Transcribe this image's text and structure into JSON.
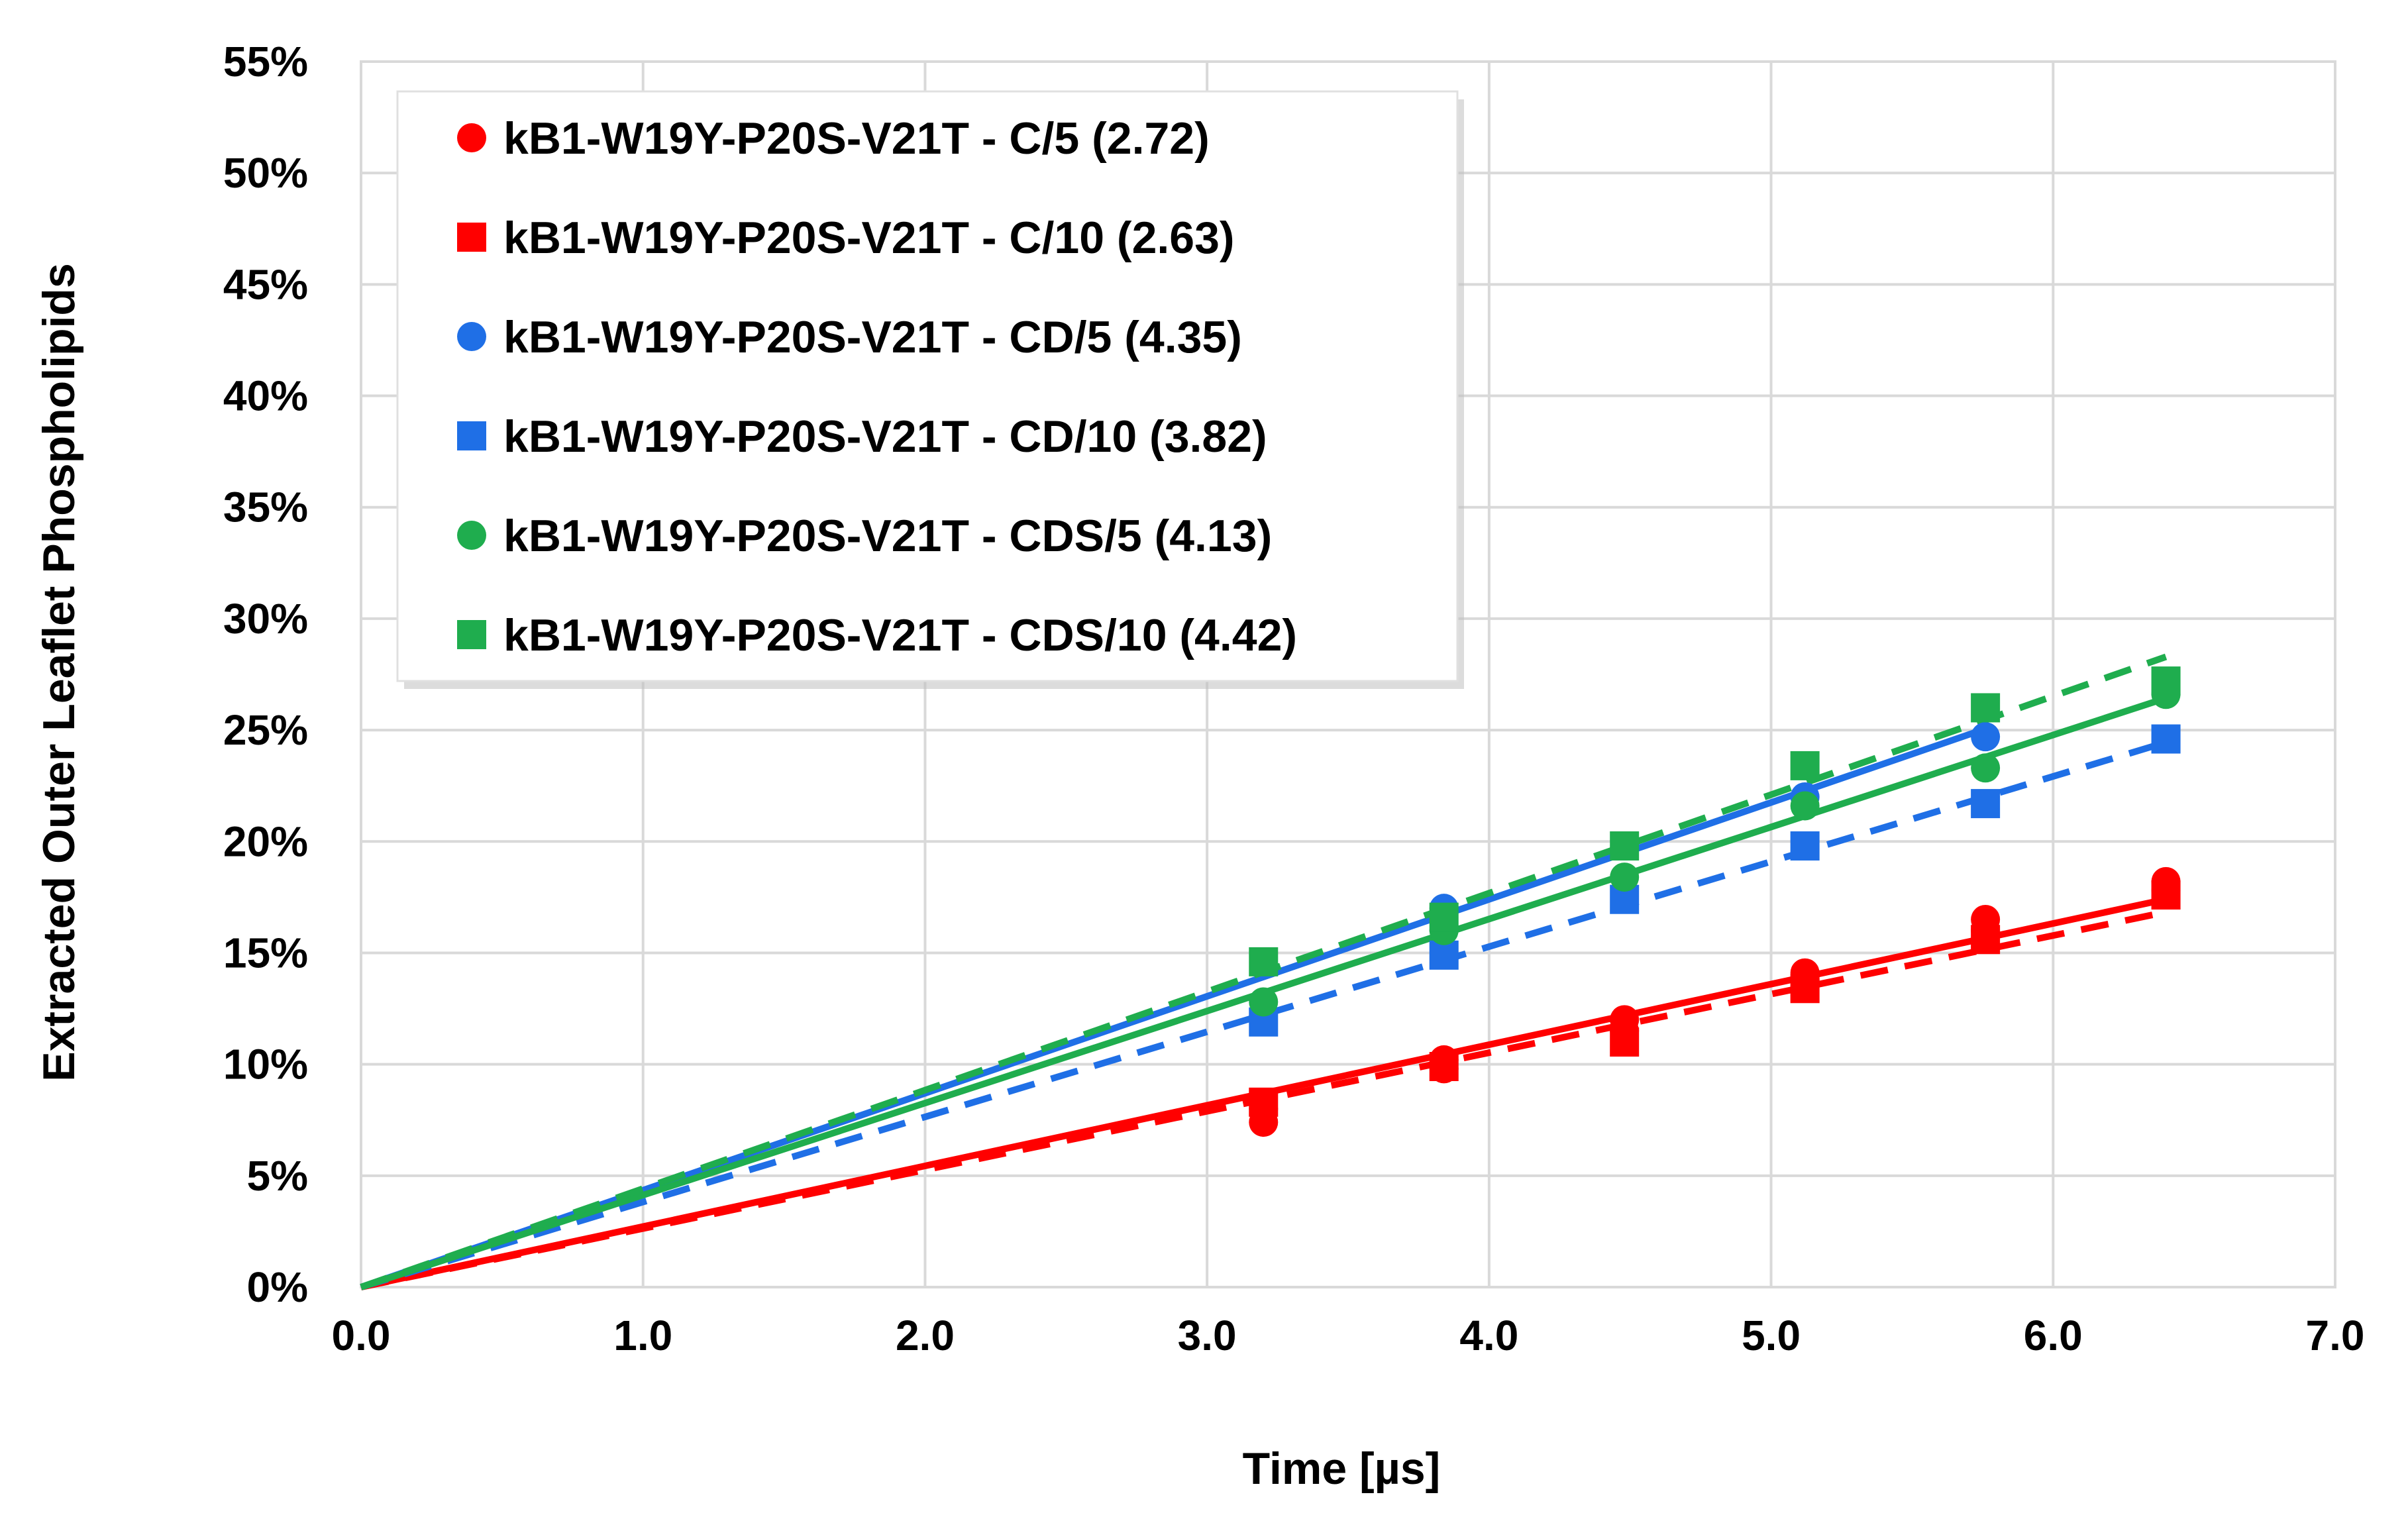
{
  "chart_data": {
    "type": "scatter",
    "title": "",
    "xlabel": "Time [µs]",
    "ylabel": "Extracted Outer Leaflet Phospholipids",
    "xlim": [
      0,
      7
    ],
    "ylim": [
      0,
      55
    ],
    "x_ticks": [
      "0.0",
      "1.0",
      "2.0",
      "3.0",
      "4.0",
      "5.0",
      "6.0",
      "7.0"
    ],
    "y_ticks": [
      "0%",
      "5%",
      "10%",
      "15%",
      "20%",
      "25%",
      "30%",
      "35%",
      "40%",
      "45%",
      "50%",
      "55%"
    ],
    "x_tick_values": [
      0,
      1,
      2,
      3,
      4,
      5,
      6,
      7
    ],
    "y_tick_values": [
      0,
      5,
      10,
      15,
      20,
      25,
      30,
      35,
      40,
      45,
      50,
      55
    ],
    "grid": true,
    "legend_position": "top-left",
    "series": [
      {
        "name": "kB1-W19Y-P20S-V21T - C/5 (2.72)",
        "color": "#ff0000",
        "marker": "circle",
        "line_style": "solid",
        "slope": 2.72,
        "points": [
          {
            "x": 3.2,
            "y": 7.4
          },
          {
            "x": 3.2,
            "y": 8.0
          },
          {
            "x": 3.84,
            "y": 9.8
          },
          {
            "x": 3.84,
            "y": 10.2
          },
          {
            "x": 4.48,
            "y": 11.5
          },
          {
            "x": 4.48,
            "y": 12.0
          },
          {
            "x": 5.12,
            "y": 13.8
          },
          {
            "x": 5.12,
            "y": 14.1
          },
          {
            "x": 5.76,
            "y": 16.0
          },
          {
            "x": 5.76,
            "y": 16.5
          },
          {
            "x": 6.4,
            "y": 17.8
          },
          {
            "x": 6.4,
            "y": 18.2
          }
        ]
      },
      {
        "name": "kB1-W19Y-P20S-V21T - C/10 (2.63)",
        "color": "#ff0000",
        "marker": "square",
        "line_style": "dashed",
        "slope": 2.63,
        "points": [
          {
            "x": 3.2,
            "y": 8.3
          },
          {
            "x": 3.84,
            "y": 9.9
          },
          {
            "x": 4.48,
            "y": 11.0
          },
          {
            "x": 5.12,
            "y": 13.4
          },
          {
            "x": 5.76,
            "y": 15.6
          },
          {
            "x": 6.4,
            "y": 17.6
          }
        ]
      },
      {
        "name": "kB1-W19Y-P20S-V21T - CD/5 (4.35)",
        "color": "#1f6fe6",
        "marker": "circle",
        "line_style": "solid",
        "slope": 4.35,
        "points": [
          {
            "x": 3.84,
            "y": 17.0
          },
          {
            "x": 5.12,
            "y": 22.0
          },
          {
            "x": 5.76,
            "y": 24.7
          }
        ]
      },
      {
        "name": "kB1-W19Y-P20S-V21T - CD/10 (3.82)",
        "color": "#1f6fe6",
        "marker": "square",
        "line_style": "dashed",
        "slope": 3.82,
        "points": [
          {
            "x": 3.2,
            "y": 11.9
          },
          {
            "x": 3.84,
            "y": 14.9
          },
          {
            "x": 4.48,
            "y": 17.4
          },
          {
            "x": 5.12,
            "y": 19.8
          },
          {
            "x": 5.76,
            "y": 21.7
          },
          {
            "x": 6.4,
            "y": 24.6
          }
        ]
      },
      {
        "name": "kB1-W19Y-P20S-V21T - CDS/5 (4.13)",
        "color": "#1fad4e",
        "marker": "circle",
        "line_style": "solid",
        "slope": 4.13,
        "points": [
          {
            "x": 3.2,
            "y": 12.8
          },
          {
            "x": 3.84,
            "y": 16.0
          },
          {
            "x": 4.48,
            "y": 18.4
          },
          {
            "x": 5.12,
            "y": 21.6
          },
          {
            "x": 5.76,
            "y": 23.3
          },
          {
            "x": 6.4,
            "y": 26.6
          }
        ]
      },
      {
        "name": "kB1-W19Y-P20S-V21T - CDS/10 (4.42)",
        "color": "#1fad4e",
        "marker": "square",
        "line_style": "dashed",
        "slope": 4.42,
        "points": [
          {
            "x": 3.2,
            "y": 14.6
          },
          {
            "x": 3.84,
            "y": 16.6
          },
          {
            "x": 4.48,
            "y": 19.8
          },
          {
            "x": 5.12,
            "y": 23.4
          },
          {
            "x": 5.76,
            "y": 26.0
          },
          {
            "x": 6.4,
            "y": 27.2
          }
        ]
      }
    ]
  }
}
